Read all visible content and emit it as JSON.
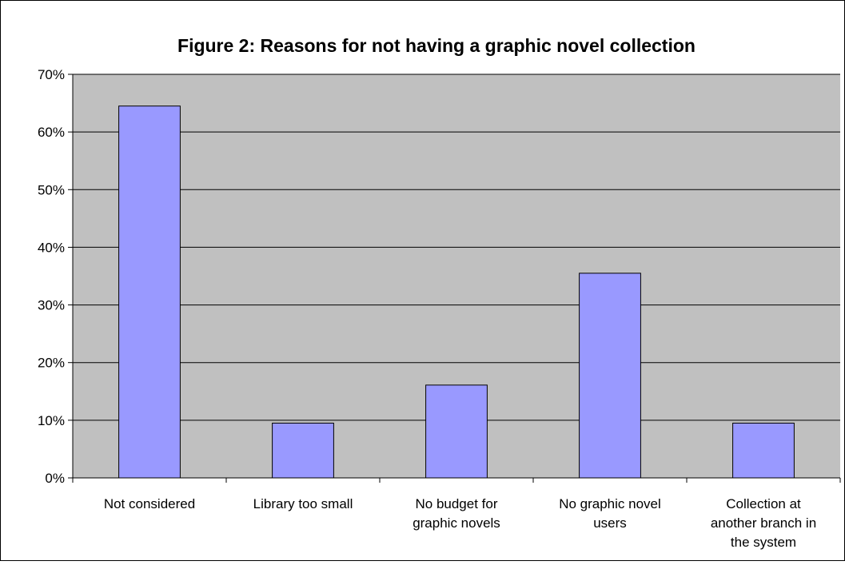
{
  "chart_data": {
    "type": "bar",
    "title": "Figure 2: Reasons for not having a graphic novel collection",
    "categories": [
      "Not considered",
      "Library too small",
      "No budget for graphic novels",
      "No graphic novel users",
      "Collection at another branch in the system"
    ],
    "category_lines": [
      [
        "Not considered"
      ],
      [
        "Library too small"
      ],
      [
        "No budget for",
        "graphic novels"
      ],
      [
        "No graphic novel",
        "users"
      ],
      [
        "Collection at",
        "another branch in",
        "the system"
      ]
    ],
    "values": [
      64.5,
      9.5,
      16.1,
      35.5,
      9.5
    ],
    "value_format": "percent",
    "ylim": [
      0,
      70
    ],
    "yticks": [
      0,
      10,
      20,
      30,
      40,
      50,
      60,
      70
    ],
    "ytick_labels": [
      "0%",
      "10%",
      "20%",
      "30%",
      "40%",
      "50%",
      "60%",
      "70%"
    ],
    "xlabel": "",
    "ylabel": "",
    "grid": true,
    "legend": "none",
    "colors": {
      "bar_fill": "#9999ff",
      "bar_stroke": "#000000",
      "plot_background": "#c0c0c0",
      "gridline": "#000000",
      "page_background": "#ffffff",
      "text": "#000000"
    }
  }
}
